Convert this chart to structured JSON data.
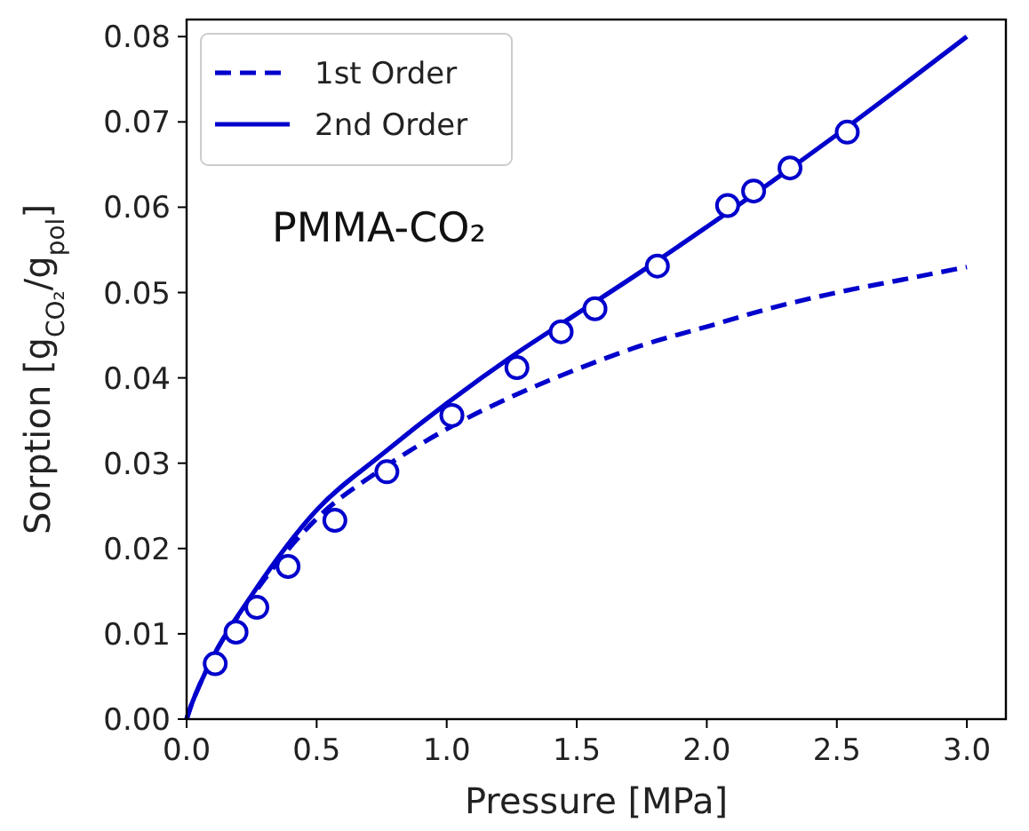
{
  "chart_data": {
    "type": "line",
    "xlabel": "Pressure [MPa]",
    "ylabel": "Sorption [g$_{CO₂}$/g$_{pol}$]",
    "xlim": [
      0,
      3.15
    ],
    "ylim": [
      0,
      0.082
    ],
    "xticks": [
      {
        "value": 0,
        "label": "0.0"
      },
      {
        "value": 0.5,
        "label": "0.5"
      },
      {
        "value": 1,
        "label": "1.0"
      },
      {
        "value": 1.5,
        "label": "1.5"
      },
      {
        "value": 2,
        "label": "2.0"
      },
      {
        "value": 2.5,
        "label": "2.5"
      },
      {
        "value": 3,
        "label": "3.0"
      }
    ],
    "yticks": [
      {
        "value": 0,
        "label": "0.00"
      },
      {
        "value": 0.01,
        "label": "0.01"
      },
      {
        "value": 0.02,
        "label": "0.02"
      },
      {
        "value": 0.03,
        "label": "0.03"
      },
      {
        "value": 0.04,
        "label": "0.04"
      },
      {
        "value": 0.05,
        "label": "0.05"
      },
      {
        "value": 0.06,
        "label": "0.06"
      },
      {
        "value": 0.07,
        "label": "0.07"
      },
      {
        "value": 0.08,
        "label": "0.08"
      }
    ],
    "grid": false,
    "legend": "top left",
    "annotations": [
      "PMMA-CO₂"
    ],
    "series": [
      {
        "name": "1st Order",
        "type": "line",
        "color": "#0000cc",
        "line_style": "dashed",
        "marker": "none",
        "x": [
          0,
          0.02,
          0.05,
          0.1,
          0.25,
          0.5,
          0.75,
          1,
          1.25,
          1.5,
          1.75,
          2,
          2.25,
          2.5,
          2.75,
          3
        ],
        "values": [
          0,
          0.0018,
          0.004,
          0.0072,
          0.0143,
          0.0235,
          0.0293,
          0.034,
          0.0378,
          0.041,
          0.0438,
          0.046,
          0.0482,
          0.05,
          0.0515,
          0.053
        ]
      },
      {
        "name": "2nd Order",
        "type": "line",
        "color": "#0000cc",
        "line_style": "solid",
        "marker": "none",
        "x": [
          0,
          0.02,
          0.05,
          0.1,
          0.25,
          0.5,
          0.75,
          1,
          1.25,
          1.5,
          1.75,
          2,
          2.25,
          2.5,
          2.75,
          3
        ],
        "values": [
          0,
          0.0018,
          0.004,
          0.0072,
          0.0145,
          0.0245,
          0.031,
          0.037,
          0.0425,
          0.0475,
          0.0525,
          0.0577,
          0.063,
          0.0685,
          0.0742,
          0.08
        ]
      },
      {
        "type": "scatter",
        "color": "#0000cc",
        "marker": "circle",
        "x": [
          0.11,
          0.19,
          0.27,
          0.39,
          0.57,
          0.77,
          1.02,
          1.27,
          1.44,
          1.57,
          1.81,
          2.08,
          2.18,
          2.32,
          2.54
        ],
        "values": [
          0.0065,
          0.0102,
          0.0131,
          0.0179,
          0.0233,
          0.029,
          0.0356,
          0.0412,
          0.0454,
          0.0481,
          0.0531,
          0.0602,
          0.0619,
          0.0646,
          0.0688
        ]
      }
    ]
  }
}
